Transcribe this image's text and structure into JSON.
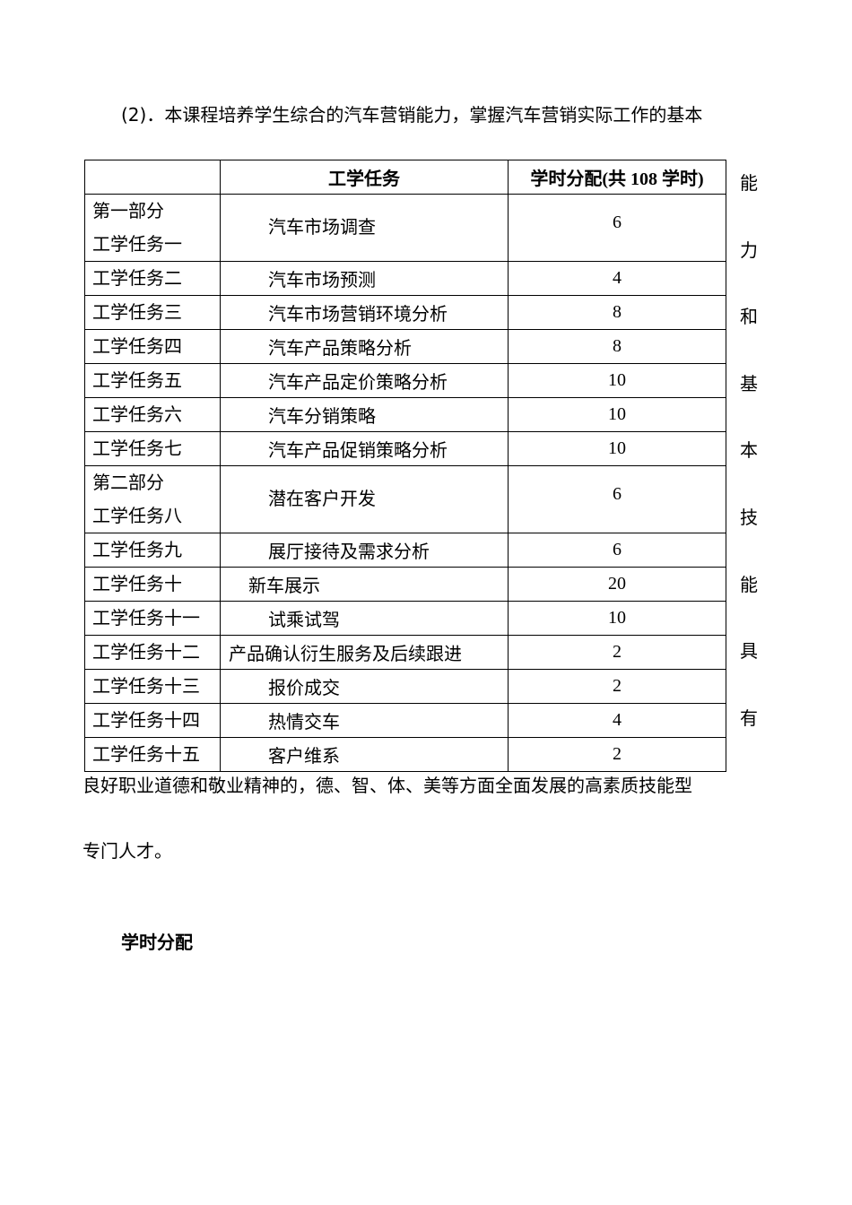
{
  "intro": "(2)．本课程培养学生综合的汽车营销能力，掌握汽车营销实际工作的基本",
  "side_text": [
    "能",
    "力",
    "和",
    "基",
    "本",
    "技",
    "能",
    "具",
    "有"
  ],
  "table": {
    "headers": [
      "",
      "工学任务",
      "学时分配(共 108 学时)"
    ],
    "rows": [
      {
        "part": "第一部分",
        "label": "工学任务一",
        "task": "汽车市场调查",
        "hours": "6"
      },
      {
        "label": "工学任务二",
        "task": "汽车市场预测",
        "hours": "4"
      },
      {
        "label": "工学任务三",
        "task": "汽车市场营销环境分析",
        "hours": "8"
      },
      {
        "label": "工学任务四",
        "task": "汽车产品策略分析",
        "hours": "8"
      },
      {
        "label": "工学任务五",
        "task": "汽车产品定价策略分析",
        "hours": "10"
      },
      {
        "label": "工学任务六",
        "task": "汽车分销策略",
        "hours": "10"
      },
      {
        "label": "工学任务七",
        "task": "汽车产品促销策略分析",
        "hours": "10"
      },
      {
        "part": "第二部分",
        "label": "工学任务八",
        "task": "潜在客户开发",
        "hours": "6"
      },
      {
        "label": "工学任务九",
        "task": "展厅接待及需求分析",
        "hours": "6"
      },
      {
        "label": "工学任务十",
        "task": "新车展示",
        "hours": "20"
      },
      {
        "label": "工学任务十一",
        "task": "试乘试驾",
        "hours": "10"
      },
      {
        "label": "工学任务十二",
        "task": "产品确认衍生服务及后续跟进",
        "hours": "2"
      },
      {
        "label": "工学任务十三",
        "task": "报价成交",
        "hours": "2"
      },
      {
        "label": "工学任务十四",
        "task": "热情交车",
        "hours": "4"
      },
      {
        "label": "工学任务十五",
        "task": "客户维系",
        "hours": "2"
      }
    ]
  },
  "para_line1": "良好职业道德和敬业精神的，德、智、体、美等方面全面发展的高素质技能型",
  "para_line2": "专门人才。",
  "section_heading": "学时分配"
}
